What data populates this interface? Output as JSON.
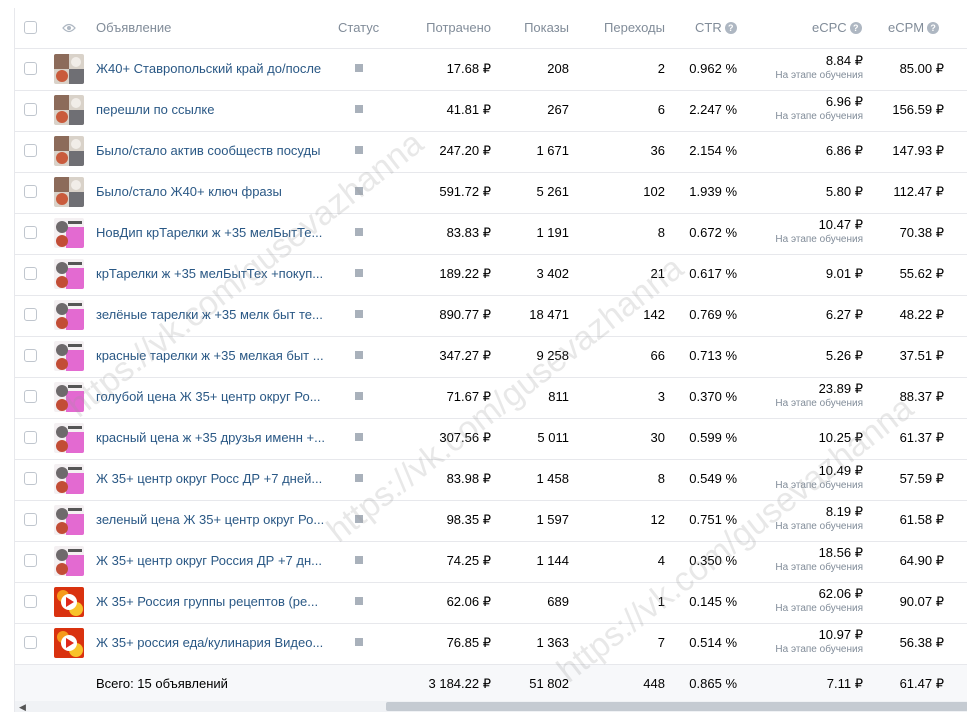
{
  "header": {
    "name": "Объявление",
    "status": "Статус",
    "spent": "Потрачено",
    "impressions": "Показы",
    "clicks": "Переходы",
    "ctr": "CTR",
    "ecpc": "eCPC",
    "ecpm": "eCPM",
    "help": "?"
  },
  "rows": [
    {
      "name": "Ж40+ Ставропольский край до/после",
      "spent": "17.68 ₽",
      "impressions": "208",
      "clicks": "2",
      "ctr": "0.962 %",
      "ecpc": "8.84 ₽",
      "ecpc_note": "На этапе обучения",
      "ecpm": "85.00 ₽",
      "thumb": "photo"
    },
    {
      "name": "перешли по ссылке",
      "spent": "41.81 ₽",
      "impressions": "267",
      "clicks": "6",
      "ctr": "2.247 %",
      "ecpc": "6.96 ₽",
      "ecpc_note": "На этапе обучения",
      "ecpm": "156.59 ₽",
      "thumb": "photo"
    },
    {
      "name": "Было/стало актив сообществ посуды",
      "spent": "247.20 ₽",
      "impressions": "1 671",
      "clicks": "36",
      "ctr": "2.154 %",
      "ecpc": "6.86 ₽",
      "ecpc_note": "",
      "ecpm": "147.93 ₽",
      "thumb": "photo"
    },
    {
      "name": "Было/стало Ж40+ ключ фразы",
      "spent": "591.72 ₽",
      "impressions": "5 261",
      "clicks": "102",
      "ctr": "1.939 %",
      "ecpc": "5.80 ₽",
      "ecpc_note": "",
      "ecpm": "112.47 ₽",
      "thumb": "photo"
    },
    {
      "name": "НовДип крТарелки ж +35 мелБытТе...",
      "spent": "83.83 ₽",
      "impressions": "1 191",
      "clicks": "8",
      "ctr": "0.672 %",
      "ecpc": "10.47 ₽",
      "ecpc_note": "На этапе обучения",
      "ecpm": "70.38 ₽",
      "thumb": "pink"
    },
    {
      "name": "крТарелки ж +35 мелБытТех +покуп...",
      "spent": "189.22 ₽",
      "impressions": "3 402",
      "clicks": "21",
      "ctr": "0.617 %",
      "ecpc": "9.01 ₽",
      "ecpc_note": "",
      "ecpm": "55.62 ₽",
      "thumb": "pink"
    },
    {
      "name": "зелёные тарелки ж +35 мелк быт те...",
      "spent": "890.77 ₽",
      "impressions": "18 471",
      "clicks": "142",
      "ctr": "0.769 %",
      "ecpc": "6.27 ₽",
      "ecpc_note": "",
      "ecpm": "48.22 ₽",
      "thumb": "pink"
    },
    {
      "name": "красные тарелки ж +35 мелкая быт ...",
      "spent": "347.27 ₽",
      "impressions": "9 258",
      "clicks": "66",
      "ctr": "0.713 %",
      "ecpc": "5.26 ₽",
      "ecpc_note": "",
      "ecpm": "37.51 ₽",
      "thumb": "pink"
    },
    {
      "name": "голубой цена Ж 35+ центр округ Ро...",
      "spent": "71.67 ₽",
      "impressions": "811",
      "clicks": "3",
      "ctr": "0.370 %",
      "ecpc": "23.89 ₽",
      "ecpc_note": "На этапе обучения",
      "ecpm": "88.37 ₽",
      "thumb": "pink"
    },
    {
      "name": "красный цена ж +35 друзья именн +...",
      "spent": "307.56 ₽",
      "impressions": "5 011",
      "clicks": "30",
      "ctr": "0.599 %",
      "ecpc": "10.25 ₽",
      "ecpc_note": "",
      "ecpm": "61.37 ₽",
      "thumb": "pink"
    },
    {
      "name": "Ж 35+ центр округ Росс ДР +7 дней...",
      "spent": "83.98 ₽",
      "impressions": "1 458",
      "clicks": "8",
      "ctr": "0.549 %",
      "ecpc": "10.49 ₽",
      "ecpc_note": "На этапе обучения",
      "ecpm": "57.59 ₽",
      "thumb": "pink"
    },
    {
      "name": "зеленый цена Ж 35+ центр округ Ро...",
      "spent": "98.35 ₽",
      "impressions": "1 597",
      "clicks": "12",
      "ctr": "0.751 %",
      "ecpc": "8.19 ₽",
      "ecpc_note": "На этапе обучения",
      "ecpm": "61.58 ₽",
      "thumb": "pink"
    },
    {
      "name": "Ж 35+ центр округ Россия ДР +7 дн...",
      "spent": "74.25 ₽",
      "impressions": "1 144",
      "clicks": "4",
      "ctr": "0.350 %",
      "ecpc": "18.56 ₽",
      "ecpc_note": "На этапе обучения",
      "ecpm": "64.90 ₽",
      "thumb": "pink"
    },
    {
      "name": "Ж 35+ Россия группы рецептов (ре...",
      "spent": "62.06 ₽",
      "impressions": "689",
      "clicks": "1",
      "ctr": "0.145 %",
      "ecpc": "62.06 ₽",
      "ecpc_note": "На этапе обучения",
      "ecpm": "90.07 ₽",
      "thumb": "video"
    },
    {
      "name": "Ж 35+ россия еда/кулинария Видео...",
      "spent": "76.85 ₽",
      "impressions": "1 363",
      "clicks": "7",
      "ctr": "0.514 %",
      "ecpc": "10.97 ₽",
      "ecpc_note": "На этапе обучения",
      "ecpm": "56.38 ₽",
      "thumb": "video"
    }
  ],
  "total": {
    "label": "Всего: 15 объявлений",
    "spent": "3 184.22 ₽",
    "impressions": "51 802",
    "clicks": "448",
    "ctr": "0.865 %",
    "ecpc": "7.11 ₽",
    "ecpm": "61.47 ₽"
  },
  "watermark": "https://vk.com/gusevazhanna",
  "colors": {
    "link": "#2a5885",
    "muted": "#818c99",
    "status": "#a9b1bb"
  }
}
